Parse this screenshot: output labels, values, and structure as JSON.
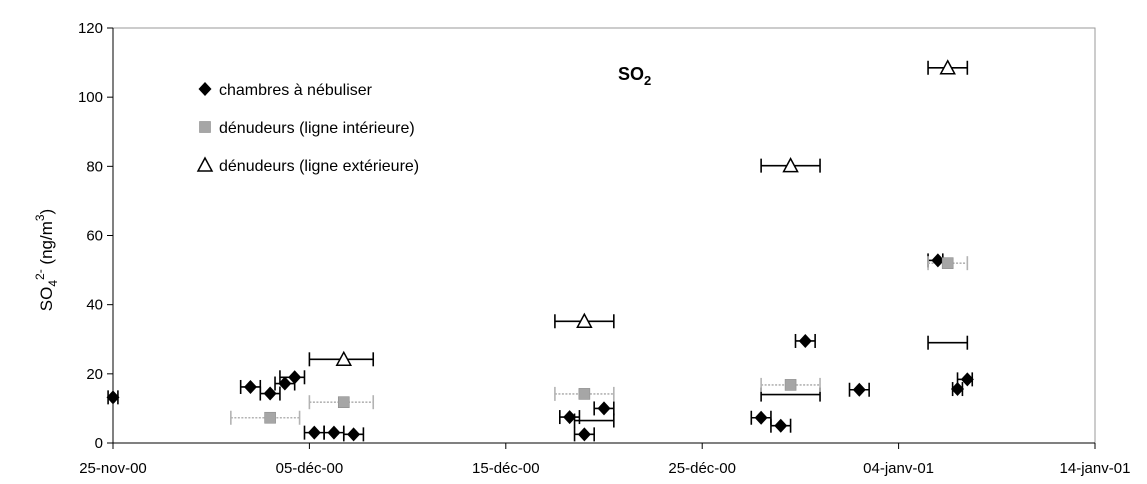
{
  "chart_data": {
    "type": "scatter",
    "title": "SO",
    "title_subscript": "2",
    "ylabel": {
      "base": "SO",
      "sub": "4",
      "sup": "2-",
      "unit_open": " (ng/m",
      "unit_sup": "3",
      "unit_close": ")"
    },
    "xlabel": "",
    "ylim": [
      0,
      120
    ],
    "yticks": [
      0,
      20,
      40,
      60,
      80,
      100,
      120
    ],
    "xlim": [
      "2000-11-25",
      "2001-01-14"
    ],
    "xticks": [
      {
        "date": "2000-11-25",
        "label": "25-nov-00"
      },
      {
        "date": "2000-12-05",
        "label": "05-déc-00"
      },
      {
        "date": "2000-12-15",
        "label": "15-déc-00"
      },
      {
        "date": "2000-12-25",
        "label": "25-déc-00"
      },
      {
        "date": "2001-01-04",
        "label": "04-janv-01"
      },
      {
        "date": "2001-01-14",
        "label": "14-janv-01"
      }
    ],
    "grid": false,
    "legend_position": "top-left",
    "series": [
      {
        "name": "chambres à nébuliser",
        "marker": "diamond",
        "color": "#000000",
        "error_color": "#000000",
        "points": [
          {
            "x": "2000-11-25",
            "y": 13.2,
            "x_from": "2000-11-24T18:00",
            "x_to": "2000-11-25T06:00"
          },
          {
            "x": "2000-12-02",
            "y": 16.2,
            "x_from": "2000-12-01T12:00",
            "x_to": "2000-12-02T12:00"
          },
          {
            "x": "2000-12-03",
            "y": 14.3,
            "x_from": "2000-12-02T12:00",
            "x_to": "2000-12-03T12:00"
          },
          {
            "x": "2000-12-03T18:00",
            "y": 17.2,
            "x_from": "2000-12-03T06:00",
            "x_to": "2000-12-04T06:00"
          },
          {
            "x": "2000-12-04T06:00",
            "y": 19.0,
            "x_from": "2000-12-03T12:00",
            "x_to": "2000-12-04T18:00"
          },
          {
            "x": "2000-12-05T06:00",
            "y": 3.0,
            "x_from": "2000-12-04T18:00",
            "x_to": "2000-12-05T18:00"
          },
          {
            "x": "2000-12-06T06:00",
            "y": 3.0,
            "x_from": "2000-12-05T18:00",
            "x_to": "2000-12-06T18:00"
          },
          {
            "x": "2000-12-07T06:00",
            "y": 2.5,
            "x_from": "2000-12-06T18:00",
            "x_to": "2000-12-07T18:00"
          },
          {
            "x": "2000-12-18T06:00",
            "y": 7.5,
            "x_from": "2000-12-17T18:00",
            "x_to": "2000-12-18T18:00"
          },
          {
            "x": "2000-12-19",
            "y": 2.5,
            "x_from": "2000-12-18T12:00",
            "x_to": "2000-12-19T12:00"
          },
          {
            "x": "2000-12-20",
            "y": 10.0,
            "x_from": "2000-12-19T12:00",
            "x_to": "2000-12-20T12:00"
          },
          {
            "x": "2000-12-28",
            "y": 7.3,
            "x_from": "2000-12-27T12:00",
            "x_to": "2000-12-28T12:00"
          },
          {
            "x": "2000-12-29",
            "y": 5.0,
            "x_from": "2000-12-28T12:00",
            "x_to": "2000-12-29T12:00"
          },
          {
            "x": "2000-12-30T06:00",
            "y": 29.5,
            "x_from": "2000-12-29T18:00",
            "x_to": "2000-12-30T18:00"
          },
          {
            "x": "2001-01-02",
            "y": 15.4,
            "x_from": "2001-01-01T12:00",
            "x_to": "2001-01-02T12:00"
          },
          {
            "x": "2001-01-06",
            "y": 52.8,
            "x_from": "2001-01-05T12:00",
            "x_to": "2001-01-06T06:00"
          },
          {
            "x": "2001-01-07",
            "y": 15.6,
            "x_from": "2001-01-06T18:00",
            "x_to": "2001-01-07T06:00"
          },
          {
            "x": "2001-01-07T12:00",
            "y": 18.4,
            "x_from": "2001-01-07T00:00",
            "x_to": "2001-01-07T18:00"
          }
        ]
      },
      {
        "name": "dénudeurs (ligne intérieure)",
        "marker": "square",
        "color": "#a6a6a6",
        "error_color": "#b3b3b3",
        "points": [
          {
            "x": "2000-12-03",
            "y": 7.3,
            "x_from": "2000-12-01",
            "x_to": "2000-12-04T12:00"
          },
          {
            "x": "2000-12-06T18:00",
            "y": 11.8,
            "x_from": "2000-12-05",
            "x_to": "2000-12-08T06:00"
          },
          {
            "x": "2000-12-19",
            "y": 14.2,
            "x_from": "2000-12-17T12:00",
            "x_to": "2000-12-20T12:00"
          },
          {
            "x": "2000-12-29T12:00",
            "y": 16.8,
            "x_from": "2000-12-28",
            "x_to": "2000-12-31"
          },
          {
            "x": "2001-01-06T12:00",
            "y": 52.0,
            "x_from": "2001-01-05T12:00",
            "x_to": "2001-01-07T12:00"
          }
        ]
      },
      {
        "name": "dénudeurs (ligne extérieure)",
        "marker": "triangle",
        "color": "#000000",
        "error_color": "#000000",
        "points": [
          {
            "x": "2000-12-06T18:00",
            "y": 24.2,
            "x_from": "2000-12-05",
            "x_to": "2000-12-08T06:00"
          },
          {
            "x": "2000-12-19",
            "y": 35.2,
            "x_from": "2000-12-17T12:00",
            "x_to": "2000-12-20T12:00"
          },
          {
            "x": "2000-12-29T12:00",
            "y": 80.2,
            "x_from": "2000-12-28",
            "x_to": "2000-12-31"
          },
          {
            "x": "2001-01-06T12:00",
            "y": 108.5,
            "x_from": "2001-01-05T12:00",
            "x_to": "2001-01-07T12:00"
          }
        ]
      }
    ],
    "extra_error_bars": [
      {
        "y": 6.5,
        "x_from": "2000-12-18T12:00",
        "x_to": "2000-12-20T12:00",
        "color": "#000000"
      },
      {
        "y": 14.0,
        "x_from": "2000-12-28",
        "x_to": "2000-12-31",
        "color": "#000000"
      },
      {
        "y": 29.0,
        "x_from": "2001-01-05T12:00",
        "x_to": "2001-01-07T12:00",
        "color": "#000000"
      }
    ]
  }
}
